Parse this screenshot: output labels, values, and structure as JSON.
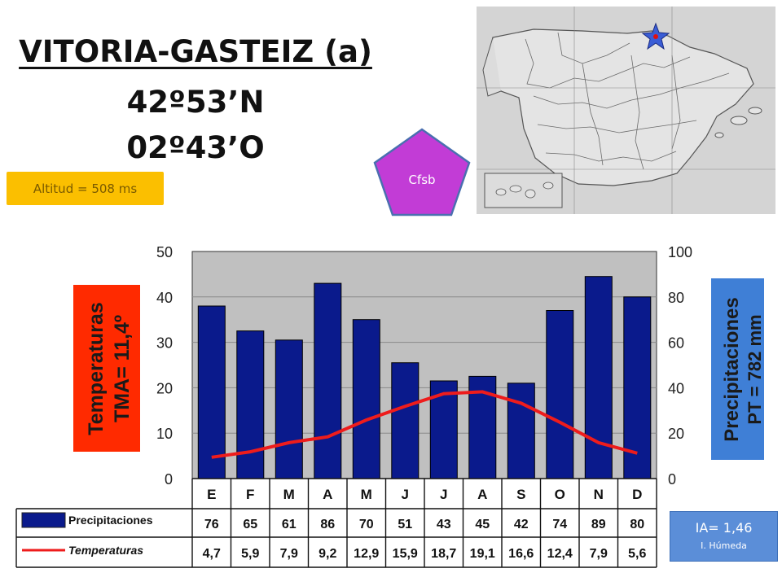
{
  "header": {
    "station": "VITORIA-GASTEIZ (a)",
    "latitude": "42º53’N",
    "longitude": "02º43’O",
    "altitude": "Altitud = 508 ms",
    "koppen": "Cfsb"
  },
  "aridity": {
    "value": "IA= 1,46",
    "label": "I. Húmeda"
  },
  "colors": {
    "bars": "#0a1a8c",
    "line": "#ee1c1c",
    "plot_bg": "#c0c0c0",
    "temp_box": "#ff2a00",
    "precip_box": "#3f7fd6",
    "koppen": "#c23cd6",
    "altitude_box": "#fbbf00"
  },
  "chart_data": {
    "type": "bar",
    "categories": [
      "E",
      "F",
      "M",
      "A",
      "M",
      "J",
      "J",
      "A",
      "S",
      "O",
      "N",
      "D"
    ],
    "series": [
      {
        "name": "Precipitaciones",
        "type": "bar",
        "axis": "right",
        "values": [
          76,
          65,
          61,
          86,
          70,
          51,
          43,
          45,
          42,
          74,
          89,
          80
        ]
      },
      {
        "name": "Temperaturas",
        "type": "line",
        "axis": "left",
        "values": [
          4.7,
          5.9,
          7.9,
          9.2,
          12.9,
          15.9,
          18.7,
          19.1,
          16.6,
          12.4,
          7.9,
          5.6
        ]
      }
    ],
    "left_axis": {
      "label_line1": "Temperaturas",
      "label_line2": "TMA= 11,4º",
      "ylim": [
        0,
        50
      ],
      "ticks": [
        "0",
        "10",
        "20",
        "30",
        "40",
        "50"
      ]
    },
    "right_axis": {
      "label_line1": "Precipitaciones",
      "label_line2": "PT = 782 mm",
      "ylim": [
        0,
        100
      ],
      "ticks": [
        "0",
        "20",
        "40",
        "60",
        "80",
        "100"
      ]
    },
    "table": {
      "row_labels": [
        "Precipitaciones",
        "Temperaturas"
      ],
      "precip_text": [
        "76",
        "65",
        "61",
        "86",
        "70",
        "51",
        "43",
        "45",
        "42",
        "74",
        "89",
        "80"
      ],
      "temp_text": [
        "4,7",
        "5,9",
        "7,9",
        "9,2",
        "12,9",
        "15,9",
        "18,7",
        "19,1",
        "16,6",
        "12,4",
        "7,9",
        "5,6"
      ]
    }
  }
}
